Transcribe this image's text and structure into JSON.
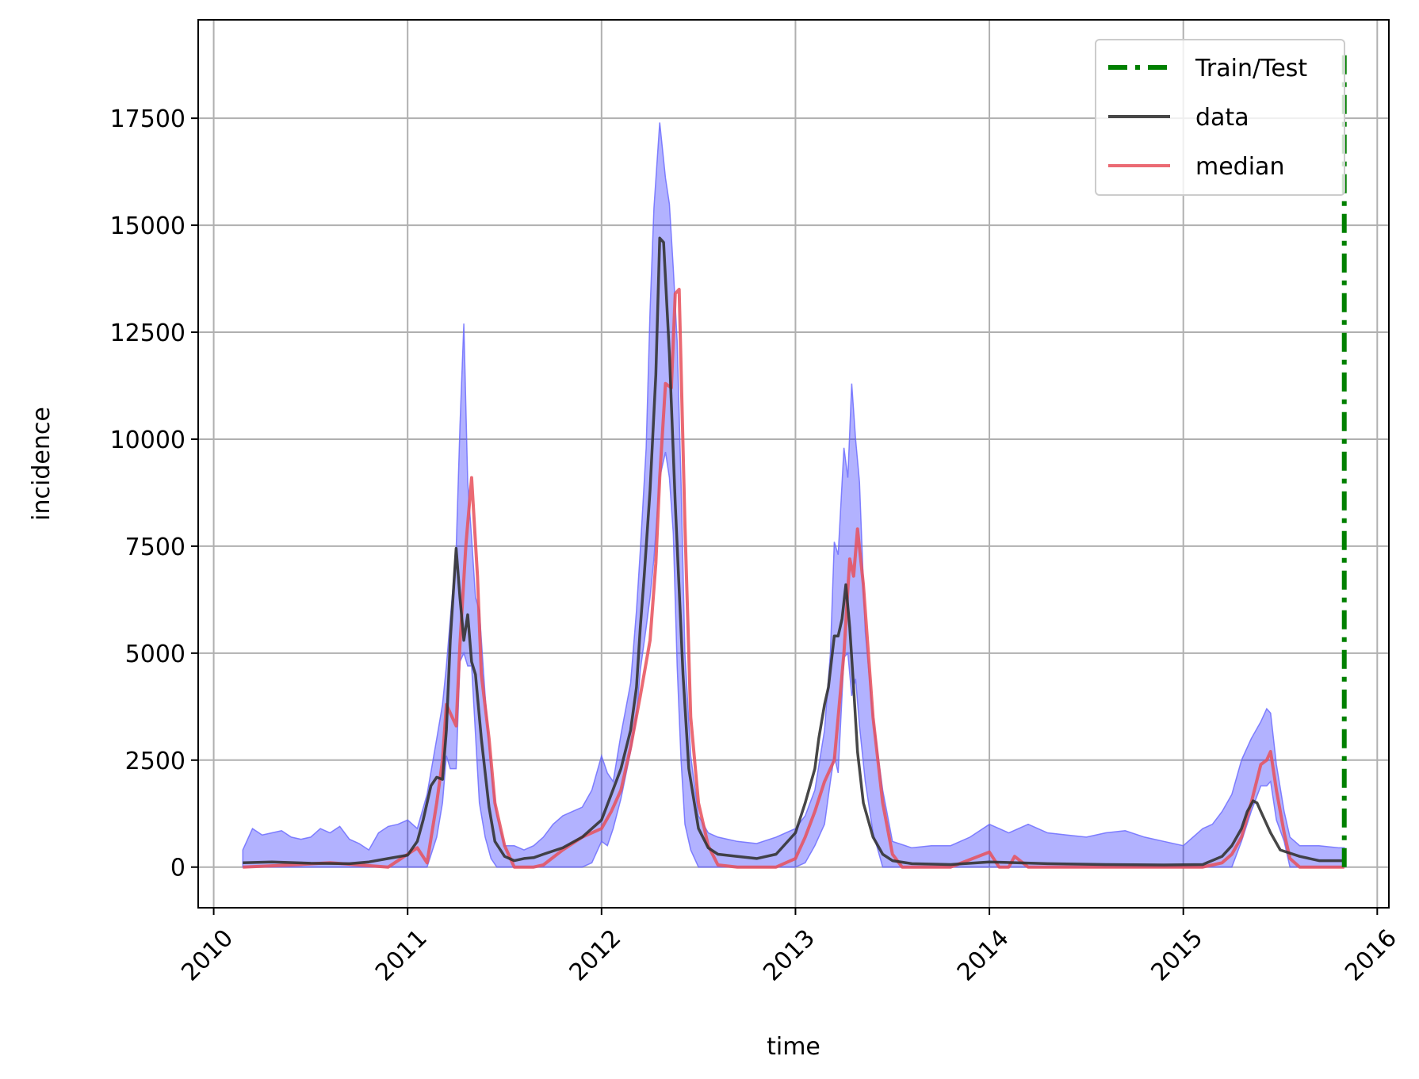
{
  "chart_data": {
    "type": "line",
    "title": "",
    "xlabel": "time",
    "ylabel": "incidence",
    "xlim": [
      2009.92,
      2016.06
    ],
    "ylim": [
      -950,
      19800
    ],
    "x_ticks": [
      2010,
      2011,
      2012,
      2013,
      2014,
      2015,
      2016
    ],
    "x_tick_labels": [
      "2010",
      "2011",
      "2012",
      "2013",
      "2014",
      "2015",
      "2016"
    ],
    "y_ticks": [
      0,
      2500,
      5000,
      7500,
      10000,
      12500,
      15000,
      17500
    ],
    "y_tick_labels": [
      "0",
      "2500",
      "5000",
      "7500",
      "10000",
      "12500",
      "15000",
      "17500"
    ],
    "grid": true,
    "legend_position": "top-right",
    "legend": [
      "Train/Test",
      "data",
      "median"
    ],
    "colors": {
      "train_test": "#008000",
      "data": "#333333",
      "median": "#e8505b",
      "band_fill": "#0000ff",
      "band_edge": "#6666ff",
      "grid": "#b0b0b0"
    },
    "train_test_x": 2015.83,
    "series": [
      {
        "name": "data",
        "x": [
          2010.15,
          2010.3,
          2010.5,
          2010.7,
          2010.8,
          2010.9,
          2011.0,
          2011.05,
          2011.08,
          2011.12,
          2011.15,
          2011.18,
          2011.2,
          2011.22,
          2011.25,
          2011.27,
          2011.29,
          2011.31,
          2011.33,
          2011.35,
          2011.38,
          2011.42,
          2011.45,
          2011.5,
          2011.55,
          2011.6,
          2011.65,
          2011.7,
          2011.8,
          2011.9,
          2012.0,
          2012.05,
          2012.1,
          2012.15,
          2012.18,
          2012.2,
          2012.22,
          2012.25,
          2012.28,
          2012.3,
          2012.32,
          2012.35,
          2012.38,
          2012.42,
          2012.45,
          2012.5,
          2012.55,
          2012.6,
          2012.7,
          2012.8,
          2012.9,
          2013.0,
          2013.05,
          2013.1,
          2013.12,
          2013.15,
          2013.17,
          2013.2,
          2013.22,
          2013.24,
          2013.26,
          2013.28,
          2013.3,
          2013.32,
          2013.35,
          2013.4,
          2013.45,
          2013.5,
          2013.6,
          2013.8,
          2014.0,
          2014.3,
          2014.6,
          2014.9,
          2015.1,
          2015.2,
          2015.25,
          2015.3,
          2015.33,
          2015.36,
          2015.38,
          2015.4,
          2015.45,
          2015.5,
          2015.6,
          2015.7,
          2015.83
        ],
        "values": [
          100,
          120,
          90,
          80,
          120,
          200,
          280,
          600,
          1100,
          1900,
          2100,
          2050,
          3200,
          5300,
          7450,
          6300,
          5300,
          5900,
          4800,
          4500,
          3000,
          1400,
          600,
          250,
          150,
          200,
          220,
          300,
          450,
          700,
          1100,
          1700,
          2300,
          3200,
          4200,
          5600,
          6800,
          8800,
          11500,
          14700,
          14600,
          12000,
          8500,
          4500,
          2300,
          900,
          450,
          300,
          250,
          200,
          300,
          800,
          1500,
          2300,
          3000,
          3800,
          4200,
          5400,
          5400,
          5800,
          6600,
          5600,
          4200,
          2700,
          1500,
          700,
          300,
          150,
          80,
          60,
          120,
          80,
          60,
          50,
          60,
          250,
          500,
          900,
          1300,
          1550,
          1500,
          1300,
          800,
          400,
          250,
          150,
          150
        ]
      },
      {
        "name": "median",
        "x": [
          2010.15,
          2010.4,
          2010.6,
          2010.9,
          2011.0,
          2011.05,
          2011.1,
          2011.15,
          2011.18,
          2011.2,
          2011.22,
          2011.25,
          2011.27,
          2011.3,
          2011.33,
          2011.36,
          2011.38,
          2011.42,
          2011.45,
          2011.5,
          2011.55,
          2011.65,
          2011.7,
          2011.8,
          2011.9,
          2012.0,
          2012.05,
          2012.1,
          2012.15,
          2012.2,
          2012.25,
          2012.28,
          2012.3,
          2012.33,
          2012.36,
          2012.38,
          2012.4,
          2012.43,
          2012.46,
          2012.5,
          2012.55,
          2012.6,
          2012.7,
          2012.8,
          2012.9,
          2013.0,
          2013.05,
          2013.1,
          2013.15,
          2013.2,
          2013.22,
          2013.25,
          2013.28,
          2013.3,
          2013.32,
          2013.35,
          2013.4,
          2013.45,
          2013.5,
          2013.55,
          2013.8,
          2014.0,
          2014.05,
          2014.1,
          2014.13,
          2014.2,
          2014.5,
          2014.9,
          2015.1,
          2015.2,
          2015.25,
          2015.3,
          2015.35,
          2015.4,
          2015.43,
          2015.45,
          2015.48,
          2015.52,
          2015.55,
          2015.6,
          2015.83
        ],
        "values": [
          0,
          50,
          100,
          0,
          300,
          450,
          100,
          1500,
          2500,
          3800,
          3600,
          3300,
          5200,
          7500,
          9100,
          6800,
          4500,
          3000,
          1500,
          500,
          0,
          0,
          50,
          400,
          700,
          900,
          1300,
          1800,
          2800,
          4000,
          5300,
          7100,
          9100,
          11300,
          11200,
          13400,
          13500,
          8000,
          3500,
          1500,
          500,
          50,
          0,
          0,
          0,
          200,
          700,
          1300,
          2000,
          2500,
          3500,
          5000,
          7200,
          6800,
          7900,
          6600,
          3500,
          1500,
          300,
          0,
          0,
          350,
          0,
          0,
          250,
          0,
          0,
          0,
          0,
          100,
          300,
          700,
          1500,
          2400,
          2500,
          2700,
          1800,
          800,
          200,
          0,
          0
        ]
      },
      {
        "name": "",
        "type": "area",
        "x": [
          2010.15,
          2010.2,
          2010.25,
          2010.3,
          2010.35,
          2010.4,
          2010.45,
          2010.5,
          2010.55,
          2010.6,
          2010.65,
          2010.7,
          2010.75,
          2010.8,
          2010.85,
          2010.9,
          2010.95,
          2011.0,
          2011.05,
          2011.1,
          2011.15,
          2011.18,
          2011.2,
          2011.22,
          2011.25,
          2011.27,
          2011.29,
          2011.31,
          2011.33,
          2011.35,
          2011.37,
          2011.4,
          2011.43,
          2011.46,
          2011.5,
          2011.55,
          2011.6,
          2011.65,
          2011.7,
          2011.75,
          2011.8,
          2011.85,
          2011.9,
          2011.95,
          2012.0,
          2012.03,
          2012.06,
          2012.1,
          2012.15,
          2012.18,
          2012.2,
          2012.23,
          2012.25,
          2012.27,
          2012.3,
          2012.33,
          2012.35,
          2012.37,
          2012.39,
          2012.41,
          2012.43,
          2012.46,
          2012.5,
          2012.55,
          2012.6,
          2012.7,
          2012.8,
          2012.9,
          2013.0,
          2013.05,
          2013.1,
          2013.15,
          2013.18,
          2013.2,
          2013.22,
          2013.25,
          2013.27,
          2013.29,
          2013.31,
          2013.33,
          2013.36,
          2013.4,
          2013.45,
          2013.5,
          2013.6,
          2013.7,
          2013.8,
          2013.9,
          2014.0,
          2014.1,
          2014.2,
          2014.3,
          2014.4,
          2014.5,
          2014.6,
          2014.7,
          2014.8,
          2014.9,
          2015.0,
          2015.05,
          2015.1,
          2015.15,
          2015.2,
          2015.25,
          2015.3,
          2015.35,
          2015.4,
          2015.43,
          2015.45,
          2015.48,
          2015.52,
          2015.55,
          2015.6,
          2015.7,
          2015.8,
          2015.83
        ],
        "upper": [
          400,
          900,
          750,
          800,
          850,
          700,
          650,
          700,
          900,
          800,
          950,
          650,
          550,
          400,
          800,
          950,
          1000,
          1100,
          900,
          1700,
          3000,
          3800,
          4700,
          5800,
          7400,
          10300,
          12700,
          9000,
          7700,
          6300,
          6000,
          4000,
          2300,
          1200,
          500,
          500,
          400,
          500,
          700,
          1000,
          1200,
          1300,
          1400,
          1800,
          2600,
          2200,
          2000,
          3100,
          4300,
          6000,
          7400,
          9800,
          13000,
          15400,
          17400,
          16100,
          15500,
          14000,
          12300,
          9000,
          5000,
          2600,
          1200,
          800,
          700,
          600,
          550,
          700,
          900,
          1200,
          1800,
          3200,
          5000,
          7600,
          7300,
          9800,
          9100,
          11300,
          10000,
          9000,
          5500,
          3500,
          1800,
          600,
          450,
          500,
          500,
          700,
          1000,
          800,
          1000,
          800,
          750,
          700,
          800,
          850,
          700,
          600,
          500,
          700,
          900,
          1000,
          1300,
          1700,
          2500,
          3000,
          3400,
          3700,
          3600,
          2400,
          1300,
          700,
          500,
          500,
          450,
          450
        ],
        "lower": [
          0,
          0,
          0,
          0,
          0,
          0,
          0,
          0,
          0,
          0,
          0,
          0,
          0,
          0,
          0,
          0,
          0,
          0,
          0,
          0,
          700,
          1500,
          2600,
          2300,
          2300,
          4800,
          5000,
          4700,
          4700,
          3100,
          1500,
          700,
          200,
          0,
          0,
          0,
          0,
          0,
          0,
          0,
          0,
          0,
          0,
          100,
          600,
          500,
          900,
          1600,
          2700,
          3500,
          4600,
          5600,
          6300,
          7200,
          9100,
          9700,
          9100,
          7800,
          4700,
          2500,
          1000,
          400,
          0,
          0,
          0,
          0,
          0,
          0,
          0,
          100,
          500,
          1000,
          2000,
          2600,
          2200,
          4900,
          5000,
          4000,
          4400,
          3300,
          2000,
          800,
          0,
          0,
          0,
          0,
          0,
          0,
          0,
          0,
          0,
          0,
          0,
          0,
          0,
          0,
          0,
          0,
          0,
          0,
          0,
          0,
          0,
          0,
          600,
          1300,
          1900,
          1900,
          2000,
          1100,
          600,
          0,
          0,
          0,
          0,
          0
        ]
      }
    ]
  }
}
